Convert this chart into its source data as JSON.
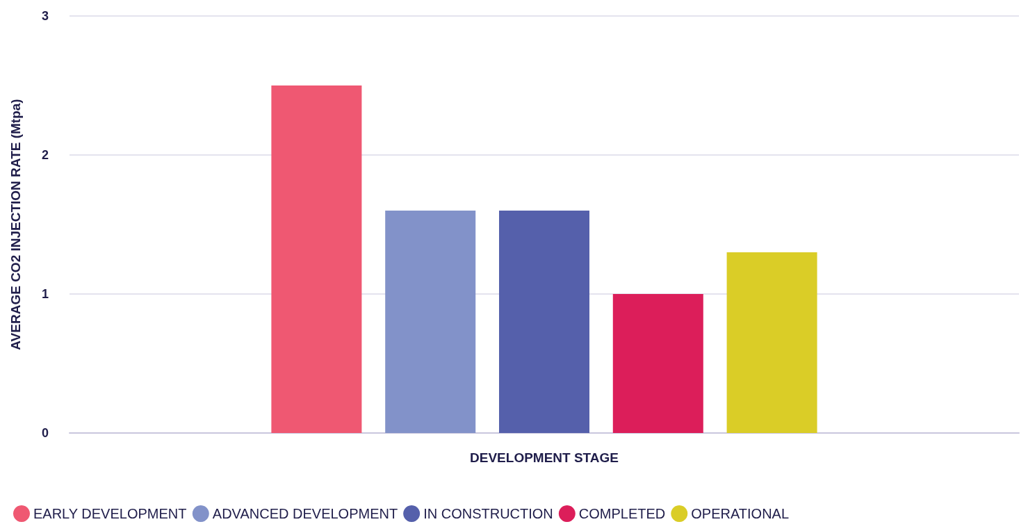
{
  "chart_data": {
    "type": "bar",
    "xlabel": "DEVELOPMENT STAGE",
    "ylabel": "AVERAGE CO2 INJECTION RATE (Mtpa)",
    "categories": [
      null
    ],
    "series": [
      {
        "name": "EARLY DEVELOPMENT",
        "color": "#ef5872",
        "values": [
          2.5
        ]
      },
      {
        "name": "ADVANCED DEVELOPMENT",
        "color": "#8292c9",
        "values": [
          1.6
        ]
      },
      {
        "name": "IN CONSTRUCTION",
        "color": "#5560ab",
        "values": [
          1.6
        ]
      },
      {
        "name": "COMPLETED",
        "color": "#dc1e5a",
        "values": [
          1.0
        ]
      },
      {
        "name": "OPERATIONAL",
        "color": "#dacd27",
        "values": [
          1.3
        ]
      }
    ],
    "ylim": [
      0,
      3
    ],
    "yticks": [
      0,
      1,
      2,
      3
    ],
    "grid": "y",
    "legend": "bottom"
  }
}
